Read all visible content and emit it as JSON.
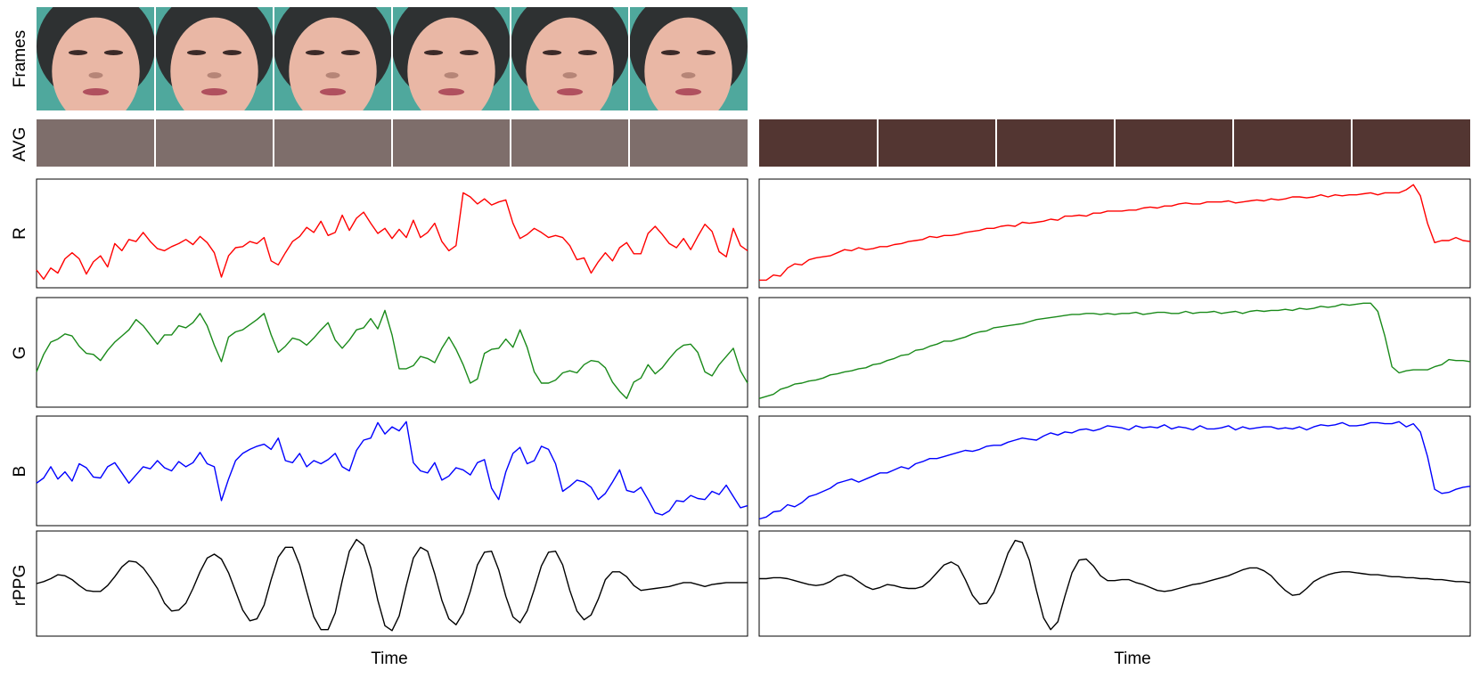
{
  "row_labels": [
    "Frames",
    "AVG",
    "R",
    "G",
    "B",
    "rPPG"
  ],
  "time_label": "Time",
  "colors": {
    "R": "#ff0000",
    "G": "#1a8a1a",
    "B": "#0000ff",
    "rPPG": "#000000"
  },
  "chart_data": [
    {
      "type": "line",
      "panel": "left",
      "frames": {
        "count": 6,
        "icon": "face-frame-icon",
        "skin_color": "#e9b7a5",
        "hair_color": "#2e3132",
        "background_color": "#4fa89d"
      },
      "avg_colors": [
        "#7e6e6b",
        "#7e6e6b",
        "#7e6e6b",
        "#7e6e6b",
        "#7e6e6b",
        "#7e6e6b"
      ],
      "x": [
        0,
        3,
        6,
        9,
        12,
        15,
        18,
        21,
        24,
        27,
        30,
        33,
        36,
        39,
        42,
        45,
        48,
        51,
        54,
        57,
        60,
        63,
        66,
        69,
        72,
        75,
        78,
        81,
        84,
        87,
        90,
        93,
        96,
        99,
        102,
        105,
        108,
        111,
        114,
        117,
        120,
        123,
        126,
        129,
        132,
        135,
        138,
        141,
        144,
        147,
        150,
        153,
        156,
        159,
        162,
        165,
        168,
        171,
        174,
        177,
        180,
        183,
        186,
        189,
        192,
        195,
        198,
        201,
        204,
        207,
        210,
        213,
        216,
        219,
        222,
        225,
        228,
        231,
        234,
        237,
        240,
        243,
        246,
        249,
        252,
        255,
        258,
        261,
        264,
        267,
        270,
        273,
        276,
        279,
        282,
        285,
        288,
        291,
        294,
        297,
        300
      ],
      "series": [
        {
          "key": "R",
          "values": [
            0.14,
            0.05,
            0.16,
            0.11,
            0.25,
            0.31,
            0.25,
            0.1,
            0.22,
            0.28,
            0.17,
            0.4,
            0.33,
            0.44,
            0.42,
            0.51,
            0.42,
            0.35,
            0.33,
            0.37,
            0.4,
            0.44,
            0.39,
            0.47,
            0.41,
            0.31,
            0.07,
            0.28,
            0.36,
            0.37,
            0.42,
            0.4,
            0.46,
            0.23,
            0.19,
            0.31,
            0.42,
            0.47,
            0.56,
            0.51,
            0.62,
            0.48,
            0.51,
            0.68,
            0.53,
            0.65,
            0.71,
            0.6,
            0.5,
            0.55,
            0.45,
            0.54,
            0.46,
            0.63,
            0.46,
            0.51,
            0.6,
            0.42,
            0.33,
            0.38,
            0.9,
            0.86,
            0.79,
            0.84,
            0.78,
            0.81,
            0.83,
            0.6,
            0.45,
            0.49,
            0.55,
            0.51,
            0.46,
            0.48,
            0.46,
            0.38,
            0.24,
            0.26,
            0.11,
            0.22,
            0.31,
            0.23,
            0.36,
            0.41,
            0.3,
            0.3,
            0.5,
            0.57,
            0.49,
            0.4,
            0.36,
            0.45,
            0.34,
            0.47,
            0.59,
            0.52,
            0.32,
            0.27,
            0.55,
            0.38,
            0.33
          ]
        },
        {
          "key": "G",
          "values": [
            0.31,
            0.48,
            0.6,
            0.63,
            0.68,
            0.66,
            0.56,
            0.49,
            0.48,
            0.42,
            0.52,
            0.6,
            0.66,
            0.72,
            0.82,
            0.76,
            0.67,
            0.58,
            0.67,
            0.67,
            0.76,
            0.74,
            0.79,
            0.88,
            0.76,
            0.57,
            0.41,
            0.65,
            0.7,
            0.72,
            0.77,
            0.82,
            0.88,
            0.67,
            0.5,
            0.56,
            0.64,
            0.62,
            0.57,
            0.64,
            0.72,
            0.79,
            0.62,
            0.54,
            0.62,
            0.72,
            0.74,
            0.83,
            0.73,
            0.91,
            0.67,
            0.34,
            0.34,
            0.37,
            0.46,
            0.44,
            0.4,
            0.54,
            0.65,
            0.53,
            0.38,
            0.2,
            0.24,
            0.49,
            0.53,
            0.54,
            0.63,
            0.55,
            0.72,
            0.55,
            0.31,
            0.2,
            0.2,
            0.23,
            0.3,
            0.32,
            0.3,
            0.38,
            0.42,
            0.41,
            0.35,
            0.21,
            0.12,
            0.05,
            0.21,
            0.25,
            0.38,
            0.29,
            0.35,
            0.44,
            0.52,
            0.57,
            0.58,
            0.5,
            0.31,
            0.27,
            0.38,
            0.46,
            0.54,
            0.32,
            0.2
          ]
        },
        {
          "key": "B",
          "values": [
            0.38,
            0.43,
            0.54,
            0.42,
            0.49,
            0.4,
            0.57,
            0.53,
            0.44,
            0.43,
            0.54,
            0.58,
            0.48,
            0.38,
            0.46,
            0.54,
            0.52,
            0.6,
            0.53,
            0.5,
            0.59,
            0.54,
            0.58,
            0.68,
            0.57,
            0.54,
            0.21,
            0.42,
            0.6,
            0.67,
            0.71,
            0.74,
            0.76,
            0.71,
            0.82,
            0.6,
            0.58,
            0.67,
            0.54,
            0.6,
            0.57,
            0.61,
            0.67,
            0.54,
            0.5,
            0.7,
            0.8,
            0.82,
            0.97,
            0.86,
            0.93,
            0.89,
            0.98,
            0.58,
            0.5,
            0.48,
            0.58,
            0.41,
            0.45,
            0.53,
            0.51,
            0.46,
            0.58,
            0.61,
            0.33,
            0.22,
            0.49,
            0.67,
            0.73,
            0.57,
            0.6,
            0.74,
            0.71,
            0.57,
            0.3,
            0.35,
            0.41,
            0.39,
            0.34,
            0.22,
            0.28,
            0.39,
            0.51,
            0.31,
            0.29,
            0.34,
            0.22,
            0.09,
            0.07,
            0.11,
            0.21,
            0.2,
            0.26,
            0.23,
            0.22,
            0.3,
            0.27,
            0.36,
            0.25,
            0.14,
            0.16
          ]
        },
        {
          "key": "rPPG",
          "values": [
            0.5,
            0.52,
            0.55,
            0.59,
            0.58,
            0.54,
            0.48,
            0.43,
            0.42,
            0.42,
            0.48,
            0.57,
            0.67,
            0.73,
            0.72,
            0.66,
            0.56,
            0.45,
            0.3,
            0.22,
            0.23,
            0.3,
            0.45,
            0.62,
            0.76,
            0.8,
            0.75,
            0.61,
            0.42,
            0.23,
            0.12,
            0.14,
            0.28,
            0.54,
            0.77,
            0.87,
            0.87,
            0.69,
            0.42,
            0.16,
            0.03,
            0.03,
            0.2,
            0.53,
            0.83,
            0.95,
            0.89,
            0.66,
            0.33,
            0.07,
            0.02,
            0.17,
            0.48,
            0.76,
            0.87,
            0.83,
            0.6,
            0.33,
            0.14,
            0.08,
            0.2,
            0.42,
            0.69,
            0.82,
            0.83,
            0.64,
            0.37,
            0.16,
            0.1,
            0.22,
            0.44,
            0.68,
            0.82,
            0.83,
            0.69,
            0.43,
            0.22,
            0.13,
            0.18,
            0.34,
            0.54,
            0.62,
            0.62,
            0.57,
            0.48,
            0.43,
            0.44,
            0.45,
            0.46,
            0.47,
            0.49,
            0.51,
            0.51,
            0.49,
            0.47,
            0.49,
            0.5,
            0.51,
            0.51,
            0.51,
            0.51
          ]
        }
      ]
    },
    {
      "type": "line",
      "panel": "right",
      "frames": {
        "count": 6,
        "icon": "face-frame-icon",
        "skin_color": "#a8675a",
        "hair_color": "#1b1816",
        "background_color": "#8d8c8e"
      },
      "avg_colors": [
        "#533632",
        "#533632",
        "#533632",
        "#533632",
        "#533632",
        "#533632"
      ],
      "x": [
        0,
        3,
        6,
        9,
        12,
        15,
        18,
        21,
        24,
        27,
        30,
        33,
        36,
        39,
        42,
        45,
        48,
        51,
        54,
        57,
        60,
        63,
        66,
        69,
        72,
        75,
        78,
        81,
        84,
        87,
        90,
        93,
        96,
        99,
        102,
        105,
        108,
        111,
        114,
        117,
        120,
        123,
        126,
        129,
        132,
        135,
        138,
        141,
        144,
        147,
        150,
        153,
        156,
        159,
        162,
        165,
        168,
        171,
        174,
        177,
        180,
        183,
        186,
        189,
        192,
        195,
        198,
        201,
        204,
        207,
        210,
        213,
        216,
        219,
        222,
        225,
        228,
        231,
        234,
        237,
        240,
        243,
        246,
        249,
        252,
        255,
        258,
        261,
        264,
        267,
        270,
        273,
        276,
        279,
        282,
        285,
        288,
        291,
        294,
        297,
        300
      ],
      "series": [
        {
          "key": "R",
          "values": [
            0.04,
            0.04,
            0.09,
            0.08,
            0.16,
            0.2,
            0.19,
            0.24,
            0.26,
            0.27,
            0.28,
            0.31,
            0.34,
            0.33,
            0.36,
            0.34,
            0.35,
            0.37,
            0.37,
            0.39,
            0.4,
            0.42,
            0.43,
            0.44,
            0.47,
            0.46,
            0.48,
            0.48,
            0.49,
            0.51,
            0.52,
            0.53,
            0.55,
            0.55,
            0.57,
            0.58,
            0.57,
            0.61,
            0.6,
            0.61,
            0.62,
            0.64,
            0.63,
            0.67,
            0.67,
            0.68,
            0.67,
            0.7,
            0.7,
            0.72,
            0.72,
            0.72,
            0.73,
            0.73,
            0.75,
            0.76,
            0.75,
            0.77,
            0.77,
            0.79,
            0.8,
            0.79,
            0.79,
            0.81,
            0.81,
            0.81,
            0.82,
            0.8,
            0.81,
            0.82,
            0.83,
            0.82,
            0.84,
            0.83,
            0.84,
            0.86,
            0.86,
            0.85,
            0.86,
            0.88,
            0.86,
            0.88,
            0.87,
            0.88,
            0.88,
            0.89,
            0.9,
            0.88,
            0.9,
            0.9,
            0.9,
            0.93,
            0.98,
            0.87,
            0.6,
            0.41,
            0.43,
            0.43,
            0.46,
            0.43,
            0.42
          ]
        },
        {
          "key": "G",
          "values": [
            0.05,
            0.07,
            0.09,
            0.14,
            0.16,
            0.19,
            0.2,
            0.22,
            0.23,
            0.25,
            0.28,
            0.29,
            0.31,
            0.32,
            0.34,
            0.35,
            0.38,
            0.39,
            0.42,
            0.44,
            0.47,
            0.48,
            0.52,
            0.53,
            0.56,
            0.58,
            0.61,
            0.61,
            0.63,
            0.65,
            0.68,
            0.7,
            0.71,
            0.74,
            0.75,
            0.76,
            0.77,
            0.78,
            0.8,
            0.82,
            0.83,
            0.84,
            0.85,
            0.86,
            0.87,
            0.87,
            0.88,
            0.88,
            0.87,
            0.88,
            0.87,
            0.88,
            0.88,
            0.89,
            0.87,
            0.88,
            0.89,
            0.89,
            0.88,
            0.88,
            0.9,
            0.88,
            0.89,
            0.89,
            0.9,
            0.88,
            0.89,
            0.9,
            0.88,
            0.9,
            0.91,
            0.9,
            0.91,
            0.91,
            0.92,
            0.91,
            0.93,
            0.92,
            0.93,
            0.95,
            0.94,
            0.95,
            0.97,
            0.96,
            0.97,
            0.98,
            0.98,
            0.9,
            0.66,
            0.36,
            0.3,
            0.32,
            0.33,
            0.33,
            0.33,
            0.36,
            0.38,
            0.43,
            0.42,
            0.42,
            0.41
          ]
        },
        {
          "key": "B",
          "values": [
            0.03,
            0.05,
            0.1,
            0.11,
            0.17,
            0.15,
            0.19,
            0.25,
            0.27,
            0.3,
            0.33,
            0.38,
            0.4,
            0.42,
            0.39,
            0.42,
            0.45,
            0.48,
            0.48,
            0.51,
            0.54,
            0.52,
            0.57,
            0.59,
            0.62,
            0.62,
            0.64,
            0.66,
            0.68,
            0.7,
            0.69,
            0.71,
            0.74,
            0.75,
            0.75,
            0.78,
            0.8,
            0.82,
            0.81,
            0.8,
            0.84,
            0.87,
            0.85,
            0.88,
            0.87,
            0.9,
            0.91,
            0.89,
            0.91,
            0.94,
            0.93,
            0.92,
            0.9,
            0.94,
            0.92,
            0.93,
            0.92,
            0.95,
            0.91,
            0.93,
            0.92,
            0.9,
            0.94,
            0.91,
            0.91,
            0.92,
            0.94,
            0.9,
            0.93,
            0.91,
            0.92,
            0.93,
            0.93,
            0.91,
            0.92,
            0.91,
            0.93,
            0.9,
            0.93,
            0.95,
            0.94,
            0.95,
            0.97,
            0.94,
            0.94,
            0.95,
            0.97,
            0.97,
            0.96,
            0.96,
            0.98,
            0.93,
            0.96,
            0.88,
            0.64,
            0.32,
            0.28,
            0.29,
            0.32,
            0.34,
            0.35
          ]
        },
        {
          "key": "rPPG",
          "values": [
            0.55,
            0.55,
            0.56,
            0.56,
            0.55,
            0.53,
            0.51,
            0.49,
            0.48,
            0.49,
            0.52,
            0.57,
            0.59,
            0.57,
            0.52,
            0.47,
            0.44,
            0.46,
            0.49,
            0.48,
            0.46,
            0.45,
            0.45,
            0.47,
            0.53,
            0.61,
            0.69,
            0.72,
            0.68,
            0.54,
            0.38,
            0.29,
            0.3,
            0.41,
            0.6,
            0.81,
            0.94,
            0.92,
            0.74,
            0.43,
            0.15,
            0.03,
            0.11,
            0.37,
            0.61,
            0.74,
            0.75,
            0.68,
            0.58,
            0.53,
            0.53,
            0.54,
            0.54,
            0.51,
            0.49,
            0.46,
            0.43,
            0.42,
            0.43,
            0.45,
            0.47,
            0.49,
            0.5,
            0.52,
            0.54,
            0.56,
            0.58,
            0.61,
            0.64,
            0.66,
            0.66,
            0.63,
            0.58,
            0.5,
            0.43,
            0.38,
            0.39,
            0.45,
            0.52,
            0.56,
            0.59,
            0.61,
            0.62,
            0.62,
            0.61,
            0.6,
            0.59,
            0.59,
            0.58,
            0.57,
            0.57,
            0.56,
            0.56,
            0.55,
            0.55,
            0.54,
            0.54,
            0.53,
            0.52,
            0.52,
            0.51
          ]
        }
      ]
    }
  ]
}
